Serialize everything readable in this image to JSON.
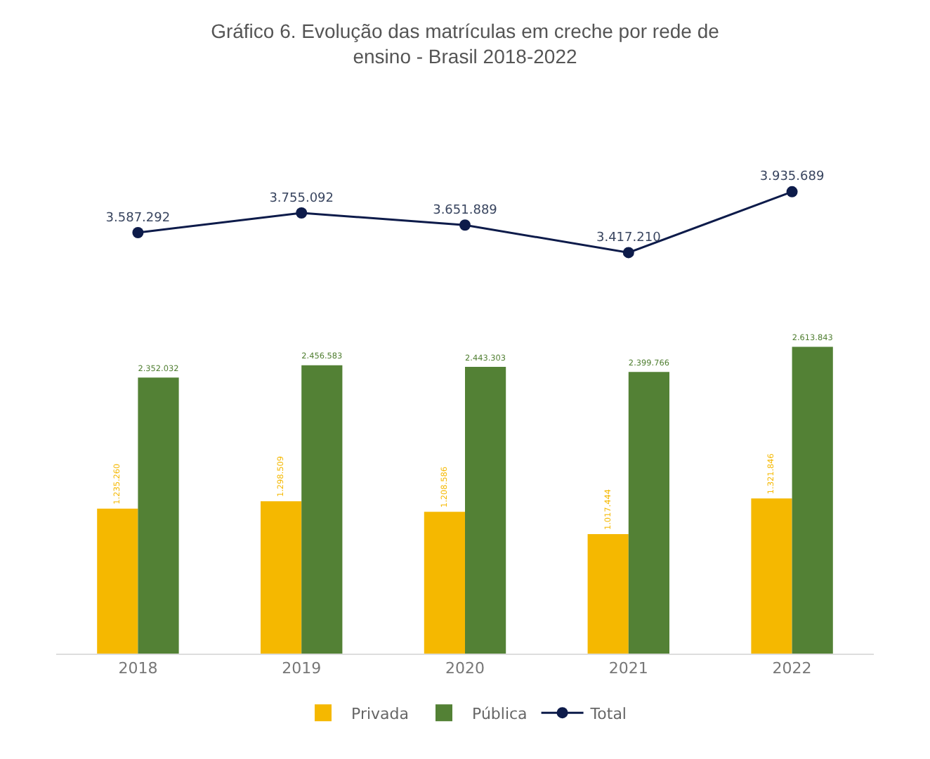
{
  "chart_data": {
    "type": "bar",
    "title": "Gráfico 6. Evolução das matrículas em creche por rede de ensino - Brasil 2018-2022",
    "categories": [
      "2018",
      "2019",
      "2020",
      "2021",
      "2022"
    ],
    "series": [
      {
        "name": "Privada",
        "color": "#f5b800",
        "values": [
          1235260,
          1298509,
          1208586,
          1017444,
          1321846
        ],
        "value_labels": [
          "1.235.260",
          "1.298.509",
          "1.208.586",
          "1.017.444",
          "1.321.846"
        ]
      },
      {
        "name": "Pública",
        "color": "#538135",
        "values": [
          2352032,
          2456583,
          2443303,
          2399766,
          2613843
        ],
        "value_labels": [
          "2.352.032",
          "2.456.583",
          "2.443.303",
          "2.399.766",
          "2.613.843"
        ]
      },
      {
        "name": "Total",
        "type": "line",
        "color": "#0d1b4a",
        "values": [
          3587292,
          3755092,
          3651889,
          3417210,
          3935689
        ],
        "value_labels": [
          "3.587.292",
          "3.755.092",
          "3.651.889",
          "3.417.210",
          "3.935.689"
        ]
      }
    ],
    "tick_labels": "x",
    "grid": false,
    "legend": "bottom",
    "marker": "circle",
    "line_style": "solid"
  }
}
